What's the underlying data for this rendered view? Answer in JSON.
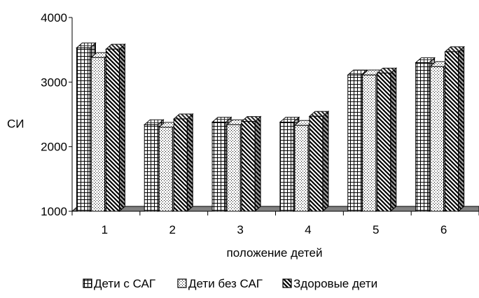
{
  "chart_data": {
    "type": "bar",
    "ylabel": "СИ",
    "xlabel": "положение детей",
    "categories": [
      "1",
      "2",
      "3",
      "4",
      "5",
      "6"
    ],
    "ylim": [
      1000,
      4000
    ],
    "yticks": [
      "1000",
      "2000",
      "3000",
      "4000"
    ],
    "series": [
      {
        "name": "Дети с САГ",
        "values": [
          3530,
          2340,
          2380,
          2380,
          3110,
          3300
        ],
        "pattern": "grid"
      },
      {
        "name": "Дети без САГ",
        "values": [
          3380,
          2300,
          2340,
          2330,
          3110,
          3240
        ],
        "pattern": "dots"
      },
      {
        "name": "Здоровые дети",
        "values": [
          3510,
          2430,
          2390,
          2470,
          3140,
          3470
        ],
        "pattern": "diagonal"
      }
    ],
    "legend_position": "bottom",
    "grid": false,
    "style": "3d-bars"
  }
}
